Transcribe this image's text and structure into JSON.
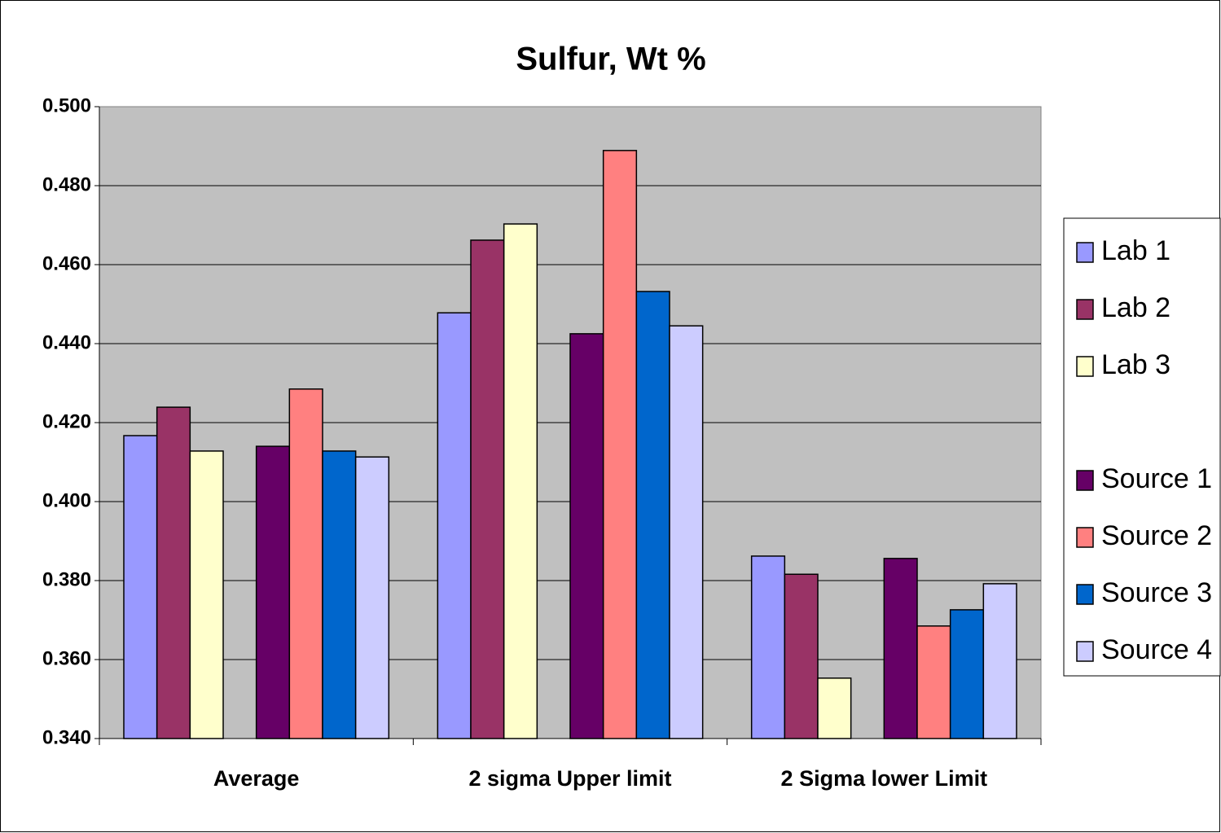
{
  "chart_data": {
    "type": "bar",
    "title": "Sulfur, Wt %",
    "categories": [
      "Average",
      "2 sigma Upper limit",
      "2 Sigma lower Limit"
    ],
    "series": [
      {
        "name": "Lab 1",
        "color": "#9999ff",
        "values": [
          0.4167,
          0.4478,
          0.3862
        ]
      },
      {
        "name": "Lab 2",
        "color": "#993366",
        "values": [
          0.4239,
          0.4662,
          0.3816
        ]
      },
      {
        "name": "Lab 3",
        "color": "#ffffcc",
        "values": [
          0.4128,
          0.4703,
          0.3553
        ]
      },
      {
        "name": "Source 1",
        "color": "#660066",
        "values": [
          0.414,
          0.4425,
          0.3856
        ]
      },
      {
        "name": "Source 2",
        "color": "#ff8080",
        "values": [
          0.4285,
          0.4889,
          0.3685
        ]
      },
      {
        "name": "Source 3",
        "color": "#0066cc",
        "values": [
          0.4128,
          0.4532,
          0.3726
        ]
      },
      {
        "name": "Source 4",
        "color": "#ccccff",
        "values": [
          0.4113,
          0.4445,
          0.3792
        ]
      }
    ],
    "ylim": [
      0.34,
      0.5
    ],
    "yticks": [
      {
        "value": 0.34,
        "label": "0.340"
      },
      {
        "value": 0.36,
        "label": "0.360"
      },
      {
        "value": 0.38,
        "label": "0.380"
      },
      {
        "value": 0.4,
        "label": "0.400"
      },
      {
        "value": 0.42,
        "label": "0.420"
      },
      {
        "value": 0.44,
        "label": "0.440"
      },
      {
        "value": 0.46,
        "label": "0.460"
      },
      {
        "value": 0.48,
        "label": "0.480"
      },
      {
        "value": 0.5,
        "label": "0.500"
      }
    ],
    "grid": true,
    "legend": "right"
  }
}
